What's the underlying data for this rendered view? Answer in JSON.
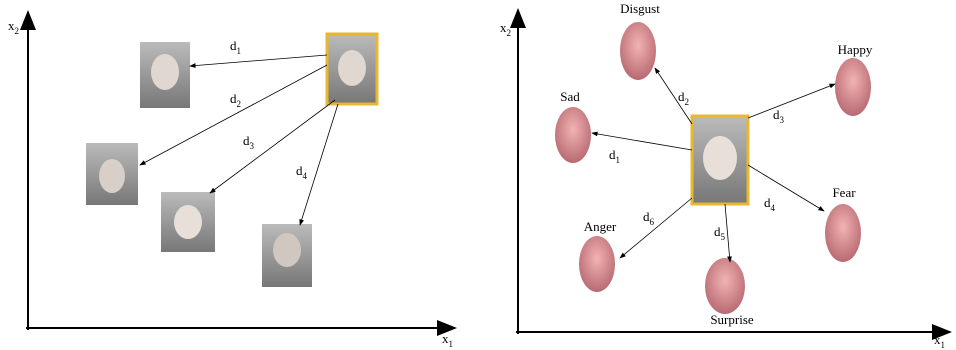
{
  "left": {
    "axes": {
      "x": {
        "base": "x",
        "sub": "1"
      },
      "y": {
        "base": "x",
        "sub": "2"
      }
    },
    "distances": [
      {
        "base": "d",
        "sub": "1"
      },
      {
        "base": "d",
        "sub": "2"
      },
      {
        "base": "d",
        "sub": "3"
      },
      {
        "base": "d",
        "sub": "4"
      }
    ]
  },
  "right": {
    "axes": {
      "x": {
        "base": "x",
        "sub": "1"
      },
      "y": {
        "base": "x",
        "sub": "2"
      }
    },
    "emotions": [
      "Disgust",
      "Happy",
      "Sad",
      "Fear",
      "Anger",
      "Surprise"
    ],
    "distances": [
      {
        "base": "d",
        "sub": "1"
      },
      {
        "base": "d",
        "sub": "2"
      },
      {
        "base": "d",
        "sub": "3"
      },
      {
        "base": "d",
        "sub": "4"
      },
      {
        "base": "d",
        "sub": "5"
      },
      {
        "base": "d",
        "sub": "6"
      }
    ]
  }
}
